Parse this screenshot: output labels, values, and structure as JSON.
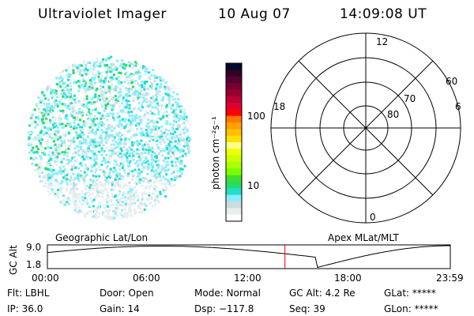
{
  "header": {
    "title": "Ultraviolet Imager",
    "date": "10 Aug 07",
    "time": "14:09:08 UT"
  },
  "colorbar": {
    "label": "photon cm⁻²s⁻¹",
    "tick_100": "100",
    "tick_10": "10",
    "colors": [
      "#000a33",
      "#330022",
      "#550033",
      "#770033",
      "#99002e",
      "#bb0033",
      "#dd0033",
      "#ff0000",
      "#ff7700",
      "#ffa000",
      "#ffc000",
      "#ffe000",
      "#ffff88",
      "#eeff00",
      "#ccff00",
      "#aaff00",
      "#77ff00",
      "#44dd33",
      "#22dd66",
      "#22ddcc",
      "#88eeff",
      "#ccdddd",
      "#e6eeee",
      "#ffffff"
    ]
  },
  "polar": {
    "labels": {
      "top": "12",
      "bottom": "0",
      "left": "18",
      "right": "6",
      "r80": "80",
      "r70": "70",
      "r60": "60"
    }
  },
  "plot": {
    "left_title": "Geographic Lat/Lon",
    "right_title": "Apex MLat/MLT",
    "ylabel": "GC Alt",
    "ymax": "9.0",
    "ymin": "1.8",
    "xticks": [
      "00:00",
      "06:00",
      "12:00",
      "18:00",
      "23:59"
    ],
    "current_hour": 14.15
  },
  "status": {
    "flt": "Flt: LBHL",
    "ip": "IP: 36.0",
    "door": "Door: Open",
    "gain": "Gain: 14",
    "mode": "Mode: Normal",
    "dsp": "Dsp: −117.8",
    "gcalt": "GC Alt: 4.2 Re",
    "seq": "Seq: 39",
    "glat": "GLat: *****",
    "glon": "GLon: *****"
  }
}
